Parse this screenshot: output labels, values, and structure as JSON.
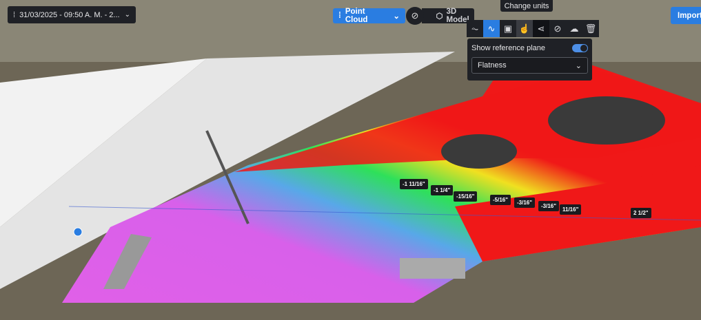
{
  "toolbar": {
    "date_selector": "31/03/2025 - 09:50 A. M. - 2...",
    "view_mode": "Point Cloud",
    "model_button": "3D Model",
    "import_button": "Import",
    "tooltip": "Change units",
    "tools": [
      "measure-profile-icon",
      "flatness-icon",
      "annotation-icon",
      "hand-pointer-icon",
      "share-icon",
      "hide-icon",
      "upload-cloud-icon",
      "trash-icon"
    ]
  },
  "popup": {
    "show_reference_plane_label": "Show reference plane",
    "show_reference_plane": true,
    "analysis_select": "Flatness"
  },
  "measurements": [
    "-1 11/16\"",
    "-1 1/4\"",
    "-15/16\"",
    "-5/16\"",
    "-3/16\"",
    "-3/16\"",
    "11/16\"",
    "2 1/2\""
  ],
  "colors": {
    "accent": "#2a7de1",
    "high": "#f01818",
    "mid": "#2ee05a",
    "low": "#e060e8"
  }
}
